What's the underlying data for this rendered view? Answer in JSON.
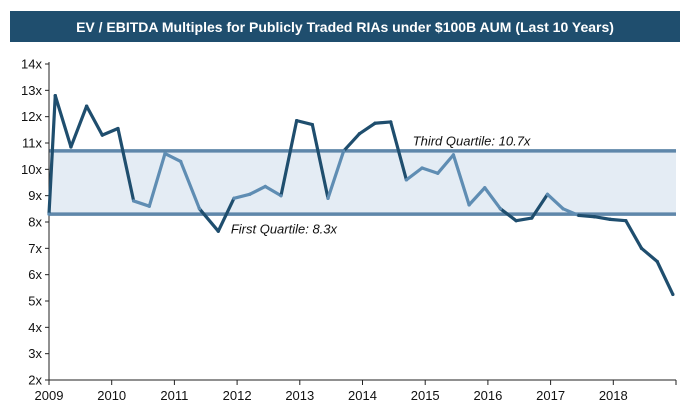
{
  "chart_data": {
    "type": "line",
    "title": "EV / EBITDA Multiples for Publicly Traded RIAs under $100B AUM (Last 10 Years)",
    "xlabel": "",
    "ylabel": "",
    "ylim": [
      2,
      14
    ],
    "xlim": [
      2009,
      2019
    ],
    "grid": false,
    "y_ticks": [
      2,
      3,
      4,
      5,
      6,
      7,
      8,
      9,
      10,
      11,
      12,
      13,
      14
    ],
    "y_tick_labels": [
      "2x",
      "3x",
      "4x",
      "5x",
      "6x",
      "7x",
      "8x",
      "9x",
      "10x",
      "11x",
      "12x",
      "13x",
      "14x"
    ],
    "x_ticks": [
      2009,
      2010,
      2011,
      2012,
      2013,
      2014,
      2015,
      2016,
      2017,
      2018
    ],
    "x_tick_labels": [
      "2009",
      "2010",
      "2011",
      "2012",
      "2013",
      "2014",
      "2015",
      "2016",
      "2017",
      "2018"
    ],
    "series": [
      {
        "name": "EV / EBITDA",
        "color": "#1f4e6e",
        "x": [
          2009.0,
          2009.1,
          2009.35,
          2009.6,
          2009.85,
          2010.1,
          2010.35,
          2010.6,
          2010.85,
          2011.1,
          2011.4,
          2011.7,
          2011.95,
          2012.2,
          2012.45,
          2012.7,
          2012.95,
          2013.2,
          2013.45,
          2013.7,
          2013.95,
          2014.2,
          2014.45,
          2014.7,
          2014.95,
          2015.2,
          2015.45,
          2015.7,
          2015.95,
          2016.2,
          2016.45,
          2016.7,
          2016.95,
          2017.2,
          2017.45,
          2017.7,
          2017.95,
          2018.2,
          2018.45,
          2018.7,
          2018.95
        ],
        "values": [
          8.3,
          12.8,
          10.85,
          12.4,
          11.3,
          11.55,
          8.8,
          8.6,
          10.6,
          10.3,
          8.5,
          7.65,
          8.9,
          9.05,
          9.35,
          9.0,
          11.85,
          11.7,
          8.9,
          10.7,
          11.35,
          11.75,
          11.8,
          9.6,
          10.05,
          9.85,
          10.55,
          8.65,
          9.3,
          8.5,
          8.05,
          8.15,
          9.05,
          8.5,
          8.25,
          8.2,
          8.1,
          8.05,
          7.0,
          6.5,
          5.25
        ]
      }
    ],
    "reference_lines": [
      {
        "name": "First Quartile",
        "value": 8.3,
        "label": "First Quartile: 8.3x",
        "color": "#5f87aa"
      },
      {
        "name": "Third Quartile",
        "value": 10.7,
        "label": "Third Quartile: 10.7x",
        "color": "#5f87aa"
      }
    ],
    "shaded_band": {
      "from": 8.3,
      "to": 10.7,
      "color": "#e4ecf4"
    },
    "annotations": [
      {
        "text": "Third Quartile: 10.7x",
        "x": 2014.8,
        "y": 11.1
      },
      {
        "text": "First Quartile: 8.3x",
        "x": 2011.9,
        "y": 7.75
      }
    ]
  }
}
